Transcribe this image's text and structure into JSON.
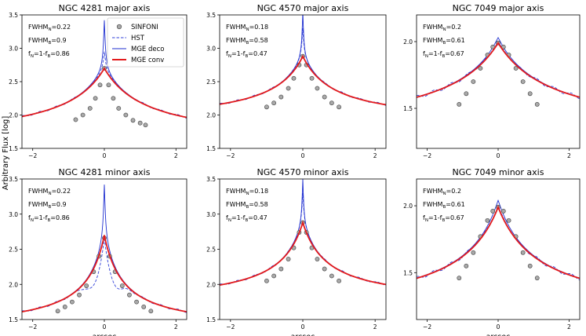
{
  "figure": {
    "ylabel": "Arbitrary Flux [log]",
    "xlabel": "arcsec",
    "legend": {
      "location": "top-right of first panel",
      "entries": [
        {
          "label": "SINFONI",
          "style": "marker-circle"
        },
        {
          "label": "HST",
          "style": "dashed",
          "color": "#2b3bd6"
        },
        {
          "label": "MGE deco",
          "style": "solid-thin",
          "color": "#1f2fd0"
        },
        {
          "label": "MGE conv",
          "style": "solid-thick",
          "color": "#e31a1c"
        }
      ]
    },
    "colors": {
      "hst": "#3040d8",
      "deco": "#1f2fd0",
      "conv": "#e31a1c",
      "marker_face": "#a9a9a9",
      "marker_edge": "#404040"
    }
  },
  "chart_data": [
    {
      "type": "line",
      "title": "NGC 4281 major axis",
      "row": 0,
      "col": 0,
      "xlim": [
        -2.3,
        2.3
      ],
      "ylim": [
        1.5,
        3.5
      ],
      "xticks": [
        -2,
        0,
        2
      ],
      "xticklabels": [
        "−2",
        "0",
        "2"
      ],
      "yticks": [
        1.5,
        2.0,
        2.5,
        3.0,
        3.5
      ],
      "yticklabels": [
        "1.5",
        "2.0",
        "2.5",
        "3.0",
        "3.5"
      ],
      "annotations": [
        {
          "sym": "FWHM",
          "sub": "N",
          "rest": "=0.22"
        },
        {
          "sym": "FWHM",
          "sub": "B",
          "rest": "=0.9"
        },
        {
          "sym": "f",
          "sub": "N",
          "rest": "=1-f",
          "sub2": "B",
          "rest2": "=0.86"
        }
      ],
      "curves": {
        "peak_conv": 2.7,
        "peak_deco": 3.42,
        "peak_hst": 2.95,
        "edge_left": 1.6,
        "edge_right": 1.58,
        "core": 0.03,
        "scale": 1.2,
        "hst_extra": 0.0
      },
      "sinfoni": {
        "x": [
          -0.8,
          -0.6,
          -0.4,
          -0.25,
          -0.12,
          0.0,
          0.12,
          0.25,
          0.4,
          0.6,
          0.8,
          1.0,
          1.15
        ],
        "y": [
          1.93,
          2.0,
          2.1,
          2.25,
          2.45,
          2.7,
          2.45,
          2.25,
          2.1,
          2.0,
          1.92,
          1.88,
          1.85
        ]
      }
    },
    {
      "type": "line",
      "title": "NGC 4570 major axis",
      "row": 0,
      "col": 1,
      "xlim": [
        -2.3,
        2.3
      ],
      "ylim": [
        1.5,
        3.5
      ],
      "xticks": [
        -2,
        0,
        2
      ],
      "xticklabels": [
        "−2",
        "0",
        "2"
      ],
      "yticks": [
        1.5,
        2.0,
        2.5,
        3.0,
        3.5
      ],
      "yticklabels": [
        "1.5",
        "2.0",
        "2.5",
        "3.0",
        "3.5"
      ],
      "annotations": [
        {
          "sym": "FWHM",
          "sub": "N",
          "rest": "=0.18"
        },
        {
          "sym": "FWHM",
          "sub": "B",
          "rest": "=0.58"
        },
        {
          "sym": "f",
          "sub": "N",
          "rest": "=1-f",
          "sub2": "B",
          "rest2": "=0.47"
        }
      ],
      "curves": {
        "peak_conv": 2.88,
        "peak_deco": 3.55,
        "peak_hst": 3.3,
        "edge_left": 1.88,
        "edge_right": 1.87,
        "core": 0.025,
        "scale": 0.9,
        "hst_extra": 0.0
      },
      "sinfoni": {
        "x": [
          -1.0,
          -0.8,
          -0.6,
          -0.4,
          -0.25,
          -0.1,
          0.0,
          0.1,
          0.25,
          0.4,
          0.6,
          0.8,
          1.0
        ],
        "y": [
          2.12,
          2.18,
          2.27,
          2.4,
          2.55,
          2.75,
          2.88,
          2.75,
          2.55,
          2.4,
          2.27,
          2.18,
          2.12
        ]
      }
    },
    {
      "type": "line",
      "title": "NGC 7049 major axis",
      "row": 0,
      "col": 2,
      "xlim": [
        -2.3,
        2.3
      ],
      "ylim": [
        1.2,
        2.2
      ],
      "xticks": [
        -2,
        0,
        2
      ],
      "xticklabels": [
        "−2",
        "0",
        "2"
      ],
      "yticks": [
        1.5,
        2.0
      ],
      "yticklabels": [
        "1.5",
        "2.0"
      ],
      "annotations": [
        {
          "sym": "FWHM",
          "sub": "N",
          "rest": "=0.2"
        },
        {
          "sym": "FWHM",
          "sub": "B",
          "rest": "=0.61"
        },
        {
          "sym": "f",
          "sub": "N",
          "rest": "=1-f",
          "sub2": "B",
          "rest2": "=0.67"
        }
      ],
      "curves": {
        "peak_conv": 1.99,
        "peak_deco": 2.03,
        "peak_hst": 2.0,
        "edge_left": 1.3,
        "edge_right": 1.3,
        "core": 0.25,
        "scale": 1.6,
        "hst_extra": 0.0
      },
      "sinfoni": {
        "x": [
          -1.1,
          -0.9,
          -0.7,
          -0.5,
          -0.3,
          -0.15,
          0.0,
          0.15,
          0.3,
          0.5,
          0.7,
          0.9,
          1.1
        ],
        "y": [
          1.53,
          1.61,
          1.7,
          1.8,
          1.9,
          1.96,
          1.99,
          1.96,
          1.9,
          1.8,
          1.7,
          1.61,
          1.53
        ]
      }
    },
    {
      "type": "line",
      "title": "NGC 4281 minor axis",
      "row": 1,
      "col": 0,
      "xlim": [
        -2.3,
        2.3
      ],
      "ylim": [
        1.5,
        3.5
      ],
      "xticks": [
        -2,
        0,
        2
      ],
      "xticklabels": [
        "−2",
        "0",
        "2"
      ],
      "yticks": [
        1.5,
        2.0,
        2.5,
        3.0,
        3.5
      ],
      "yticklabels": [
        "1.5",
        "2.0",
        "2.5",
        "3.0",
        "3.5"
      ],
      "annotations": [
        {
          "sym": "FWHM",
          "sub": "N",
          "rest": "=0.22"
        },
        {
          "sym": "FWHM",
          "sub": "B",
          "rest": "=0.9"
        },
        {
          "sym": "f",
          "sub": "N",
          "rest": "=1-f",
          "sub2": "B",
          "rest2": "=0.86"
        }
      ],
      "curves": {
        "peak_conv": 2.7,
        "peak_deco": 3.42,
        "peak_hst": 2.8,
        "edge_left": 1.35,
        "edge_right": 1.35,
        "core": 0.03,
        "scale": 0.55,
        "hst_extra": -0.25
      },
      "sinfoni": {
        "x": [
          -1.3,
          -1.1,
          -0.9,
          -0.7,
          -0.5,
          -0.3,
          -0.15,
          0.0,
          0.15,
          0.3,
          0.5,
          0.7,
          0.9,
          1.1,
          1.3
        ],
        "y": [
          1.62,
          1.68,
          1.75,
          1.85,
          1.98,
          2.18,
          2.4,
          2.66,
          2.4,
          2.18,
          1.98,
          1.85,
          1.75,
          1.68,
          1.62
        ]
      }
    },
    {
      "type": "line",
      "title": "NGC 4570 minor axis",
      "row": 1,
      "col": 1,
      "xlim": [
        -2.3,
        2.3
      ],
      "ylim": [
        1.5,
        3.5
      ],
      "xticks": [
        -2,
        0,
        2
      ],
      "xticklabels": [
        "−2",
        "0",
        "2"
      ],
      "yticks": [
        1.5,
        2.0,
        2.5,
        3.0,
        3.5
      ],
      "yticklabels": [
        "1.5",
        "2.0",
        "2.5",
        "3.0",
        "3.5"
      ],
      "annotations": [
        {
          "sym": "FWHM",
          "sub": "N",
          "rest": "=0.18"
        },
        {
          "sym": "FWHM",
          "sub": "B",
          "rest": "=0.58"
        },
        {
          "sym": "f",
          "sub": "N",
          "rest": "=1-f",
          "sub2": "B",
          "rest2": "=0.47"
        }
      ],
      "curves": {
        "peak_conv": 2.88,
        "peak_deco": 3.5,
        "peak_hst": 3.3,
        "edge_left": 1.72,
        "edge_right": 1.73,
        "core": 0.025,
        "scale": 0.7,
        "hst_extra": 0.0
      },
      "sinfoni": {
        "x": [
          -1.0,
          -0.8,
          -0.6,
          -0.4,
          -0.25,
          -0.1,
          0.0,
          0.1,
          0.25,
          0.4,
          0.6,
          0.8,
          1.0
        ],
        "y": [
          2.05,
          2.12,
          2.22,
          2.36,
          2.52,
          2.74,
          2.88,
          2.74,
          2.52,
          2.36,
          2.22,
          2.12,
          2.05
        ]
      }
    },
    {
      "type": "line",
      "title": "NGC 7049 minor axis",
      "row": 1,
      "col": 2,
      "xlim": [
        -2.3,
        2.3
      ],
      "ylim": [
        1.15,
        2.2
      ],
      "xticks": [
        -2,
        0,
        2
      ],
      "xticklabels": [
        "−2",
        "0",
        "2"
      ],
      "yticks": [
        1.5,
        2.0
      ],
      "yticklabels": [
        "1.5",
        "2.0"
      ],
      "annotations": [
        {
          "sym": "FWHM",
          "sub": "N",
          "rest": "=0.2"
        },
        {
          "sym": "FWHM",
          "sub": "B",
          "rest": "=0.61"
        },
        {
          "sym": "f",
          "sub": "N",
          "rest": "=1-f",
          "sub2": "B",
          "rest2": "=0.67"
        }
      ],
      "curves": {
        "peak_conv": 1.99,
        "peak_deco": 2.04,
        "peak_hst": 2.0,
        "edge_left": 1.18,
        "edge_right": 1.18,
        "core": 0.25,
        "scale": 1.2,
        "hst_extra": 0.0
      },
      "sinfoni": {
        "x": [
          -1.1,
          -0.9,
          -0.7,
          -0.5,
          -0.3,
          -0.15,
          0.0,
          0.15,
          0.3,
          0.5,
          0.7,
          0.9,
          1.1
        ],
        "y": [
          1.46,
          1.55,
          1.65,
          1.77,
          1.89,
          1.96,
          1.99,
          1.96,
          1.89,
          1.77,
          1.65,
          1.55,
          1.46
        ]
      }
    }
  ]
}
